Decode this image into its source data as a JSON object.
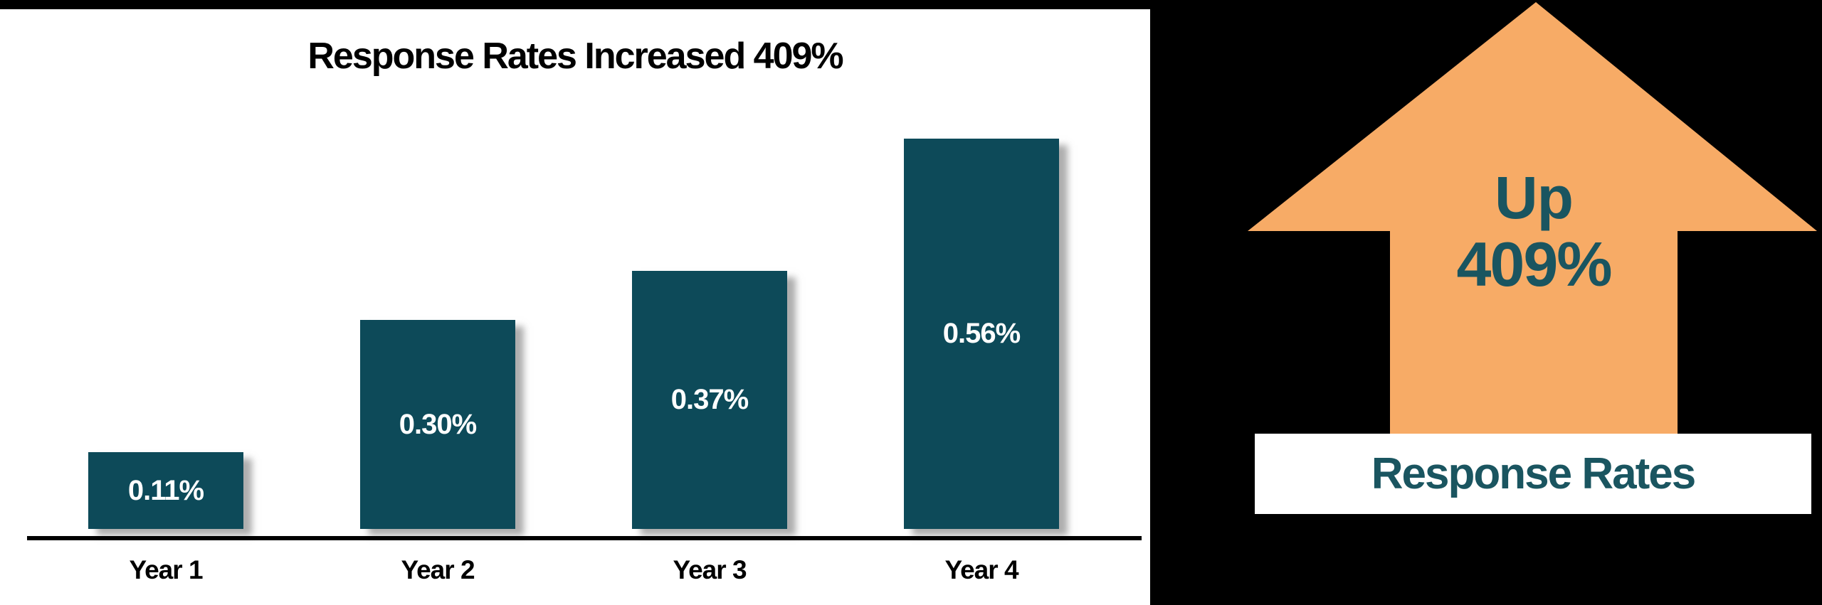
{
  "page": {
    "background": "#000000",
    "panel_background": "#ffffff"
  },
  "chart_data": {
    "type": "bar",
    "title": "Response Rates Increased 409%",
    "categories": [
      "Year 1",
      "Year 2",
      "Year 3",
      "Year 4"
    ],
    "values": [
      0.11,
      0.3,
      0.37,
      0.56
    ],
    "data_labels": [
      "0.11%",
      "0.30%",
      "0.37%",
      "0.56%"
    ],
    "unit": "percent",
    "xlabel": "",
    "ylabel": "",
    "ylim": [
      0,
      0.6
    ],
    "grid": false,
    "legend": "none",
    "bar_color": "#0d4a59",
    "data_label_color": "#ffffff",
    "axis_color": "#000000",
    "title_color": "#000000"
  },
  "callout": {
    "arrow_line1": "Up",
    "arrow_line2": "409%",
    "box_label": "Response Rates",
    "arrow_color": "#f7ab66",
    "text_color": "#1a5560",
    "box_background": "#ffffff"
  }
}
